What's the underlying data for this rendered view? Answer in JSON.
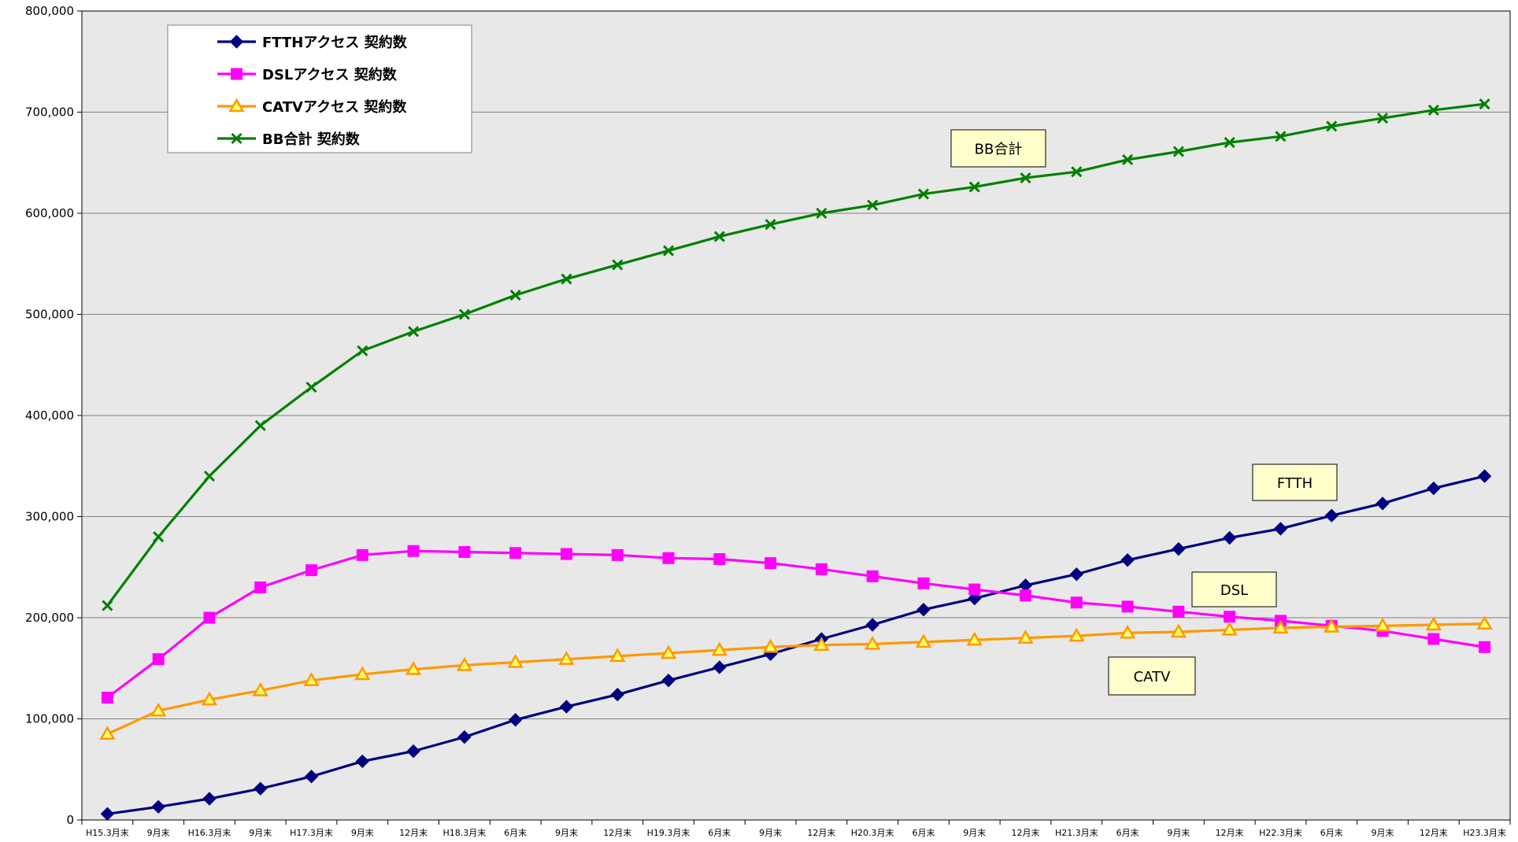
{
  "chart_data": {
    "type": "line",
    "title": "",
    "xlabel": "",
    "ylabel": "",
    "ylim": [
      0,
      800000
    ],
    "y_ticks": [
      "0",
      "100,000",
      "200,000",
      "300,000",
      "400,000",
      "500,000",
      "600,000",
      "700,000",
      "800,000"
    ],
    "grid": "horizontal",
    "legend_position": "top-left",
    "categories": [
      "H15.3月末",
      "9月末",
      "H16.3月末",
      "9月末",
      "H17.3月末",
      "9月末",
      "12月末",
      "H18.3月末",
      "6月末",
      "9月末",
      "12月末",
      "H19.3月末",
      "6月末",
      "9月末",
      "12月末",
      "H20.3月末",
      "6月末",
      "9月末",
      "12月末",
      "H21.3月末",
      "6月末",
      "9月末",
      "12月末",
      "H22.3月末",
      "6月末",
      "9月末",
      "12月末",
      "H23.3月末"
    ],
    "series": [
      {
        "name": "FTTHアクセス 契約数",
        "color": "#000080",
        "marker": "diamond",
        "values": [
          6000,
          13000,
          21000,
          31000,
          43000,
          58000,
          68000,
          82000,
          99000,
          112000,
          124000,
          138000,
          151000,
          164000,
          179000,
          193000,
          208000,
          219000,
          232000,
          243000,
          257000,
          268000,
          279000,
          288000,
          301000,
          313000,
          328000,
          340000
        ]
      },
      {
        "name": "DSLアクセス 契約数",
        "color": "#ff00ff",
        "marker": "square",
        "values": [
          121000,
          159000,
          200000,
          230000,
          247000,
          262000,
          266000,
          265000,
          264000,
          263000,
          262000,
          259000,
          258000,
          254000,
          248000,
          241000,
          234000,
          228000,
          222000,
          215000,
          211000,
          206000,
          201000,
          197000,
          192000,
          187000,
          179000,
          171000
        ]
      },
      {
        "name": "CATVアクセス 契約数",
        "color": "#ff9900",
        "marker": "triangle",
        "values": [
          85000,
          108000,
          119000,
          128000,
          138000,
          144000,
          149000,
          153000,
          156000,
          159000,
          162000,
          165000,
          168000,
          171000,
          173000,
          174000,
          176000,
          178000,
          180000,
          182000,
          185000,
          186000,
          188000,
          190000,
          191000,
          192000,
          193000,
          194000
        ]
      },
      {
        "name": "BB合計 契約数",
        "color": "#008000",
        "marker": "x",
        "values": [
          212000,
          280000,
          340000,
          390000,
          428000,
          464000,
          483000,
          500000,
          519000,
          535000,
          549000,
          563000,
          577000,
          589000,
          600000,
          608000,
          619000,
          626000,
          635000,
          641000,
          653000,
          661000,
          670000,
          676000,
          686000,
          694000,
          702000,
          708000
        ]
      }
    ],
    "annotations": [
      {
        "text": "BB合計",
        "series": "BB合計 契約数"
      },
      {
        "text": "FTTH",
        "series": "FTTHアクセス 契約数"
      },
      {
        "text": "DSL",
        "series": "DSLアクセス 契約数"
      },
      {
        "text": "CATV",
        "series": "CATVアクセス 契約数"
      }
    ]
  },
  "colors": {
    "plot_background": "#e8e8e8",
    "gridline": "#808080",
    "annotation_fill": "#ffffcc"
  }
}
